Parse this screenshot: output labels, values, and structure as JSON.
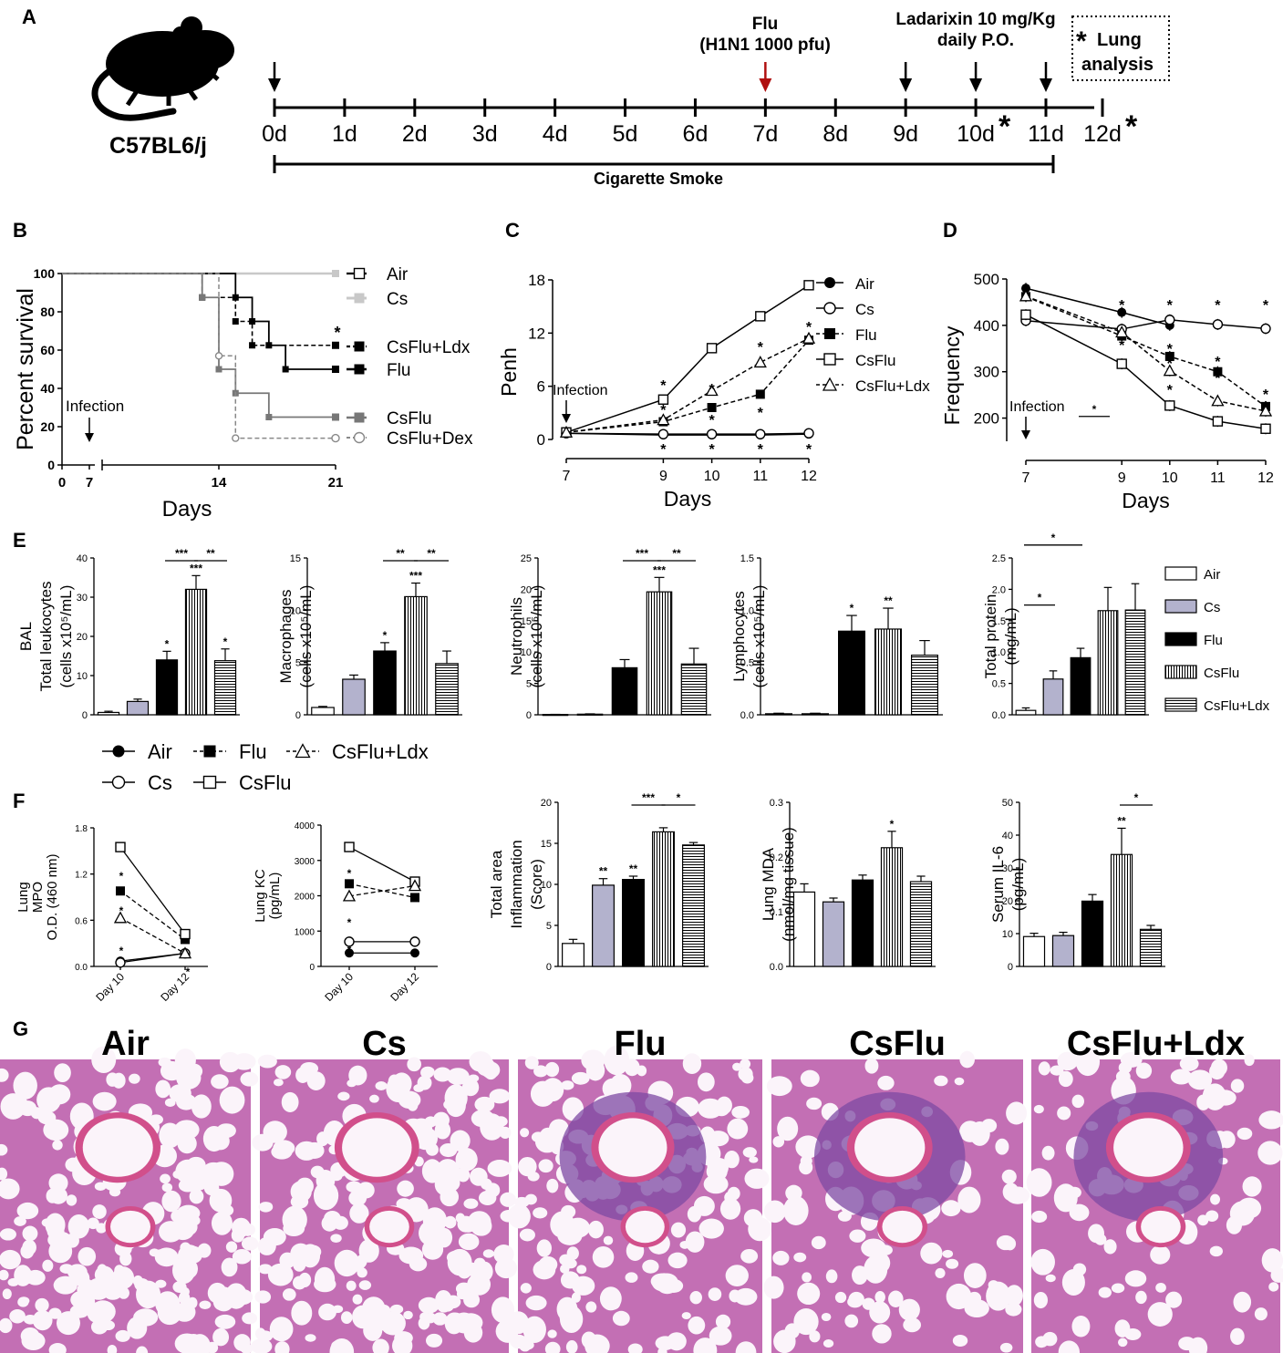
{
  "panel_a": {
    "letter": "A",
    "strain": "C57BL6/j",
    "day_labels": [
      "0d",
      "1d",
      "2d",
      "3d",
      "4d",
      "5d",
      "6d",
      "7d",
      "8d",
      "9d",
      "10d",
      "11d",
      "12d"
    ],
    "flu_label_1": "Flu",
    "flu_label_2": "(H1N1 1000 pfu)",
    "ldx_label_1": "Ladarixin 10 mg/Kg",
    "ldx_label_2": "daily P.O.",
    "lung_star": "*",
    "lung_label_1": "Lung",
    "lung_label_2": "analysis",
    "smoke_label": "Cigarette Smoke",
    "analysis_marks": [
      "*",
      "*"
    ],
    "colors": {
      "flu_arrow": "#b01010",
      "black": "#000000"
    }
  },
  "panel_e_legend": [
    "Air",
    "Cs",
    "Flu",
    "CsFlu",
    "CsFlu+Ldx"
  ],
  "panel_f_legend": [
    "Air",
    "Flu",
    "CsFlu+Ldx",
    "Cs",
    "CsFlu"
  ],
  "panel_g": {
    "letter": "G",
    "titles": [
      "Air",
      "Cs",
      "Flu",
      "CsFlu",
      "CsFlu+Ldx"
    ],
    "colors": {
      "tissue": "#c36fb4",
      "dense": "#7d4aa3",
      "lumen": "#fbf4fa",
      "stain": "#d14f8b"
    }
  },
  "chart_data": [
    {
      "id": "B",
      "letter": "B",
      "type": "line",
      "chart_kind": "survival",
      "ylabel": "Percent survival",
      "xlabel": "Days",
      "xticks": [
        "0",
        "7",
        "14",
        "21"
      ],
      "yticks": [
        "0",
        "20",
        "40",
        "60",
        "80",
        "100"
      ],
      "ylim": [
        0,
        100
      ],
      "annotation": "Infection",
      "star": "*",
      "series": [
        {
          "name": "Air",
          "points": [
            [
              0,
              100
            ],
            [
              21,
              100
            ]
          ]
        },
        {
          "name": "Cs",
          "points": [
            [
              0,
              100
            ],
            [
              21,
              100
            ]
          ]
        },
        {
          "name": "CsFlu+Ldx",
          "points": [
            [
              0,
              100
            ],
            [
              13,
              100
            ],
            [
              13,
              87.5
            ],
            [
              15,
              87.5
            ],
            [
              15,
              75
            ],
            [
              16,
              75
            ],
            [
              16,
              62.5
            ],
            [
              21,
              62.5
            ]
          ]
        },
        {
          "name": "Flu",
          "points": [
            [
              0,
              100
            ],
            [
              15,
              100
            ],
            [
              15,
              87.5
            ],
            [
              16,
              87.5
            ],
            [
              16,
              75
            ],
            [
              17,
              75
            ],
            [
              17,
              62.5
            ],
            [
              18,
              62.5
            ],
            [
              18,
              50
            ],
            [
              21,
              50
            ]
          ]
        },
        {
          "name": "CsFlu",
          "points": [
            [
              0,
              100
            ],
            [
              13,
              100
            ],
            [
              13,
              87.5
            ],
            [
              14,
              87.5
            ],
            [
              14,
              50
            ],
            [
              15,
              50
            ],
            [
              15,
              37.5
            ],
            [
              17,
              37.5
            ],
            [
              17,
              25
            ],
            [
              21,
              25
            ]
          ]
        },
        {
          "name": "CsFlu+Dex",
          "points": [
            [
              0,
              100
            ],
            [
              14,
              100
            ],
            [
              14,
              57
            ],
            [
              15,
              57
            ],
            [
              15,
              14
            ],
            [
              21,
              14
            ]
          ]
        }
      ]
    },
    {
      "id": "C",
      "letter": "C",
      "type": "line",
      "ylabel": "Penh",
      "xlabel": "Days",
      "xticks": [
        "7",
        "9",
        "10",
        "11",
        "12"
      ],
      "yticks": [
        "0",
        "6",
        "12",
        "18"
      ],
      "ylim": [
        0,
        18
      ],
      "annotation": "Infection",
      "x": [
        7,
        9,
        10,
        11,
        12
      ],
      "series": [
        {
          "name": "Air",
          "values": [
            0.7,
            0.5,
            0.5,
            0.5,
            0.6
          ]
        },
        {
          "name": "Cs",
          "values": [
            0.7,
            0.6,
            0.6,
            0.6,
            0.7
          ]
        },
        {
          "name": "Flu",
          "values": [
            0.8,
            2.0,
            3.6,
            5.1,
            11.2
          ]
        },
        {
          "name": "CsFlu",
          "values": [
            0.8,
            4.5,
            10.3,
            13.9,
            17.4
          ]
        },
        {
          "name": "CsFlu+Ldx",
          "values": [
            0.8,
            2.2,
            5.5,
            8.7,
            11.4
          ]
        }
      ]
    },
    {
      "id": "D",
      "letter": "D",
      "type": "line",
      "ylabel": "Frequency",
      "xlabel": "Days",
      "xticks": [
        "7",
        "9",
        "10",
        "11",
        "12"
      ],
      "yticks": [
        "200",
        "300",
        "400",
        "500"
      ],
      "ylim": [
        150,
        500
      ],
      "annotation": "Infection",
      "x": [
        7,
        9,
        10,
        11,
        12
      ],
      "series": [
        {
          "name": "Air",
          "values": [
            480,
            428,
            400,
            null,
            null
          ]
        },
        {
          "name": "Cs",
          "values": [
            410,
            392,
            412,
            402,
            393
          ]
        },
        {
          "name": "Flu",
          "values": [
            462,
            377,
            333,
            300,
            225
          ]
        },
        {
          "name": "CsFlu",
          "values": [
            423,
            317,
            227,
            193,
            177
          ]
        },
        {
          "name": "CsFlu+Ldx",
          "values": [
            463,
            385,
            302,
            237,
            215
          ]
        }
      ]
    },
    {
      "id": "E1",
      "letter": "E",
      "type": "bar",
      "ylabel_1": "BAL",
      "ylabel_2": "Total leukocytes",
      "ylabel_3": "(cells x10⁵/mL)",
      "yticks": [
        "0",
        "10",
        "20",
        "30",
        "40"
      ],
      "ylim": [
        0,
        40
      ],
      "categories": [
        "Air",
        "Cs",
        "Flu",
        "CsFlu",
        "CsFlu+Ldx"
      ],
      "values": [
        0.6,
        3.4,
        14,
        32,
        13.8
      ],
      "errors": [
        0.3,
        0.6,
        2.2,
        3.5,
        3.0
      ],
      "labels": [
        "",
        "",
        "*",
        "***",
        "*"
      ],
      "brackets": [
        {
          "from": 2,
          "to": 3,
          "label": "***",
          "level": 1.0
        },
        {
          "from": 3,
          "to": 4,
          "label": "**",
          "level": 1.0
        }
      ]
    },
    {
      "id": "E2",
      "type": "bar",
      "ylabel_1": "Macrophages",
      "ylabel_2": "(cells x10⁵/mL)",
      "yticks": [
        "0",
        "5",
        "10",
        "15"
      ],
      "ylim": [
        0,
        15
      ],
      "categories": [
        "Air",
        "Cs",
        "Flu",
        "CsFlu",
        "CsFlu+Ldx"
      ],
      "values": [
        0.7,
        3.4,
        6.1,
        11.3,
        4.9
      ],
      "errors": [
        0.1,
        0.4,
        0.8,
        1.3,
        1.2
      ],
      "labels": [
        "",
        "",
        "*",
        "***",
        ""
      ],
      "brackets": [
        {
          "from": 2,
          "to": 3,
          "label": "**",
          "level": 1.0
        },
        {
          "from": 3,
          "to": 4,
          "label": "**",
          "level": 1.0
        }
      ]
    },
    {
      "id": "E3",
      "type": "bar",
      "ylabel_1": "Neutrophils",
      "ylabel_2": "(cells x10⁵/mL)",
      "yticks": [
        "0",
        "5",
        "10",
        "15",
        "20",
        "25"
      ],
      "ylim": [
        0,
        25
      ],
      "categories": [
        "Air",
        "Cs",
        "Flu",
        "CsFlu",
        "CsFlu+Ldx"
      ],
      "values": [
        0.05,
        0.1,
        7.5,
        19.6,
        8.1
      ],
      "errors": [
        0.02,
        0.05,
        1.3,
        2.3,
        2.5
      ],
      "labels": [
        "",
        "",
        "",
        "***",
        ""
      ],
      "brackets": [
        {
          "from": 2,
          "to": 3,
          "label": "***",
          "level": 1.0
        },
        {
          "from": 3,
          "to": 4,
          "label": "**",
          "level": 1.0
        }
      ]
    },
    {
      "id": "E4",
      "type": "bar",
      "ylabel_1": "Lymphocytes",
      "ylabel_2": "(cells x10⁵/mL)",
      "yticks": [
        "0.0",
        "0.5",
        "1.0",
        "1.5"
      ],
      "ylim": [
        0,
        1.5
      ],
      "categories": [
        "Air",
        "Cs",
        "Flu",
        "CsFlu",
        "CsFlu+Ldx"
      ],
      "values": [
        0.01,
        0.01,
        0.8,
        0.82,
        0.57
      ],
      "errors": [
        0.005,
        0.005,
        0.15,
        0.2,
        0.14
      ],
      "labels": [
        "",
        "",
        "*",
        "**",
        ""
      ],
      "brackets": []
    },
    {
      "id": "E5",
      "type": "bar",
      "ylabel_1": "Total protein",
      "ylabel_2": "(mg/mL)",
      "yticks": [
        "0.0",
        "0.5",
        "1.0",
        "1.5",
        "2.0",
        "2.5"
      ],
      "ylim": [
        0,
        2.5
      ],
      "categories": [
        "Air",
        "Cs",
        "Flu",
        "CsFlu",
        "CsFlu+Ldx"
      ],
      "values": [
        0.07,
        0.57,
        0.91,
        1.66,
        1.67
      ],
      "errors": [
        0.04,
        0.13,
        0.15,
        0.37,
        0.42
      ],
      "labels": [
        "",
        "",
        "",
        "",
        ""
      ],
      "brackets": [
        {
          "from": 0,
          "to": 1,
          "label": "*",
          "level": 0.7
        },
        {
          "from": 0,
          "to": 2,
          "label": "*",
          "level": 1.1
        },
        {
          "from": 2,
          "to": 3,
          "label": "*",
          "level": 1.92
        }
      ]
    },
    {
      "id": "F1",
      "letter": "F",
      "type": "line",
      "ylabel_1": "Lung",
      "ylabel_2": "MPO",
      "ylabel_3": "O.D. (460 nm)",
      "xticks": [
        "Day 10",
        "Day 12"
      ],
      "yticks": [
        "0.0",
        "0.6",
        "1.2",
        "1.8"
      ],
      "ylim": [
        0,
        1.8
      ],
      "series": [
        {
          "name": "Air",
          "values": [
            0.07,
            0.17
          ]
        },
        {
          "name": "Cs",
          "values": [
            0.05,
            0.17
          ]
        },
        {
          "name": "Flu",
          "values": [
            0.98,
            0.35
          ]
        },
        {
          "name": "CsFlu",
          "values": [
            1.55,
            0.42
          ]
        },
        {
          "name": "CsFlu+Ldx",
          "values": [
            0.63,
            0.17
          ]
        }
      ]
    },
    {
      "id": "F2",
      "type": "line",
      "ylabel_1": "Lung KC",
      "ylabel_2": "(pg/mL)",
      "xticks": [
        "Day 10",
        "Day 12"
      ],
      "yticks": [
        "0",
        "1000",
        "2000",
        "3000",
        "4000"
      ],
      "ylim": [
        0,
        4000
      ],
      "series": [
        {
          "name": "Air",
          "values": [
            380,
            380
          ]
        },
        {
          "name": "Cs",
          "values": [
            700,
            700
          ]
        },
        {
          "name": "Flu",
          "values": [
            2340,
            1950
          ]
        },
        {
          "name": "CsFlu",
          "values": [
            3380,
            2400
          ]
        },
        {
          "name": "CsFlu+Ldx",
          "values": [
            1990,
            2280
          ]
        }
      ]
    },
    {
      "id": "F3",
      "type": "bar",
      "ylabel_1": "Total area",
      "ylabel_2": "Inflammation",
      "ylabel_3": "(Score)",
      "yticks": [
        "0",
        "5",
        "10",
        "15",
        "20"
      ],
      "ylim": [
        0,
        20
      ],
      "categories": [
        "Air",
        "Cs",
        "Flu",
        "CsFlu",
        "CsFlu+Ldx"
      ],
      "values": [
        2.8,
        9.9,
        10.6,
        16.4,
        14.8
      ],
      "errors": [
        0.5,
        0.8,
        0.4,
        0.5,
        0.3
      ],
      "labels": [
        "",
        "**",
        "**",
        "",
        ""
      ],
      "brackets": [
        {
          "from": 2,
          "to": 3,
          "label": "***",
          "level": 1.0
        },
        {
          "from": 3,
          "to": 4,
          "label": "*",
          "level": 1.0
        }
      ]
    },
    {
      "id": "F4",
      "type": "bar",
      "ylabel_1": "Lung MDA",
      "ylabel_2": "(nmol/mg tissue)",
      "yticks": [
        "0.0",
        "0.1",
        "0.2",
        "0.3"
      ],
      "ylim": [
        0,
        0.3
      ],
      "categories": [
        "Air",
        "Cs",
        "Flu",
        "CsFlu",
        "CsFlu+Ldx"
      ],
      "values": [
        0.136,
        0.118,
        0.158,
        0.217,
        0.155
      ],
      "errors": [
        0.015,
        0.007,
        0.009,
        0.03,
        0.01
      ],
      "labels": [
        "",
        "",
        "",
        "*",
        ""
      ],
      "brackets": []
    },
    {
      "id": "F5",
      "type": "bar",
      "ylabel_1": "Serum IL-6",
      "ylabel_2": "(pg/mL)",
      "yticks": [
        "0",
        "10",
        "20",
        "30",
        "40",
        "50"
      ],
      "ylim": [
        0,
        50
      ],
      "categories": [
        "Air",
        "Cs",
        "Flu",
        "CsFlu",
        "CsFlu+Ldx"
      ],
      "values": [
        9.1,
        9.4,
        19.9,
        34.1,
        11.3
      ],
      "errors": [
        1.0,
        1.0,
        2.0,
        8.0,
        1.2
      ],
      "labels": [
        "",
        "",
        "",
        "**",
        ""
      ],
      "brackets": [
        {
          "from": 3,
          "to": 4,
          "label": "*",
          "level": 1.0
        }
      ]
    }
  ]
}
